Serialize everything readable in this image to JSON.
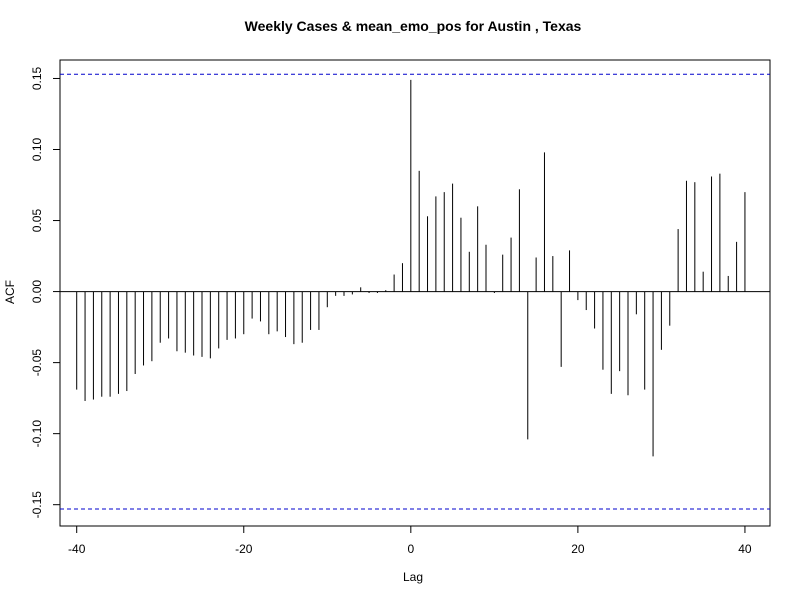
{
  "chart_data": {
    "type": "bar",
    "title": "Weekly Cases & mean_emo_pos for Austin , Texas",
    "xlabel": "Lag",
    "ylabel": "ACF",
    "xlim": [
      -42,
      43
    ],
    "ylim": [
      -0.165,
      0.163
    ],
    "x_ticks": [
      -40,
      -20,
      0,
      20,
      40
    ],
    "y_ticks": [
      -0.15,
      -0.1,
      -0.05,
      0.0,
      0.05,
      0.1,
      0.15
    ],
    "x_tick_labels": [
      "-40",
      "-20",
      "0",
      "20",
      "40"
    ],
    "y_tick_labels": [
      "-0.15",
      "-0.10",
      "-0.05",
      "0.00",
      "0.05",
      "0.10",
      "0.15"
    ],
    "confidence_bound": 0.153,
    "confidence_color": "#0000cc",
    "bar_color": "#000000",
    "lags": [
      -40,
      -39,
      -38,
      -37,
      -36,
      -35,
      -34,
      -33,
      -32,
      -31,
      -30,
      -29,
      -28,
      -27,
      -26,
      -25,
      -24,
      -23,
      -22,
      -21,
      -20,
      -19,
      -18,
      -17,
      -16,
      -15,
      -14,
      -13,
      -12,
      -11,
      -10,
      -9,
      -8,
      -7,
      -6,
      -5,
      -4,
      -3,
      -2,
      -1,
      0,
      1,
      2,
      3,
      4,
      5,
      6,
      7,
      8,
      9,
      10,
      11,
      12,
      13,
      14,
      15,
      16,
      17,
      18,
      19,
      20,
      21,
      22,
      23,
      24,
      25,
      26,
      27,
      28,
      29,
      30,
      31,
      32,
      33,
      34,
      35,
      36,
      37,
      38,
      39,
      40
    ],
    "values": [
      -0.069,
      -0.077,
      -0.076,
      -0.074,
      -0.074,
      -0.072,
      -0.07,
      -0.058,
      -0.052,
      -0.049,
      -0.036,
      -0.033,
      -0.042,
      -0.043,
      -0.045,
      -0.046,
      -0.047,
      -0.04,
      -0.034,
      -0.033,
      -0.03,
      -0.019,
      -0.021,
      -0.03,
      -0.028,
      -0.032,
      -0.037,
      -0.036,
      -0.027,
      -0.027,
      -0.011,
      -0.003,
      -0.003,
      -0.002,
      0.003,
      -0.001,
      -0.001,
      0.001,
      0.012,
      0.02,
      0.149,
      0.085,
      0.053,
      0.067,
      0.07,
      0.076,
      0.052,
      0.028,
      0.06,
      0.033,
      -0.001,
      0.026,
      0.038,
      0.072,
      -0.104,
      0.024,
      0.098,
      0.025,
      -0.053,
      0.029,
      -0.006,
      -0.013,
      -0.026,
      -0.055,
      -0.072,
      -0.056,
      -0.073,
      -0.016,
      -0.069,
      -0.116,
      -0.041,
      -0.024,
      0.044,
      0.078,
      0.077,
      0.014,
      0.081,
      0.083,
      0.011,
      0.035,
      0.07
    ]
  }
}
